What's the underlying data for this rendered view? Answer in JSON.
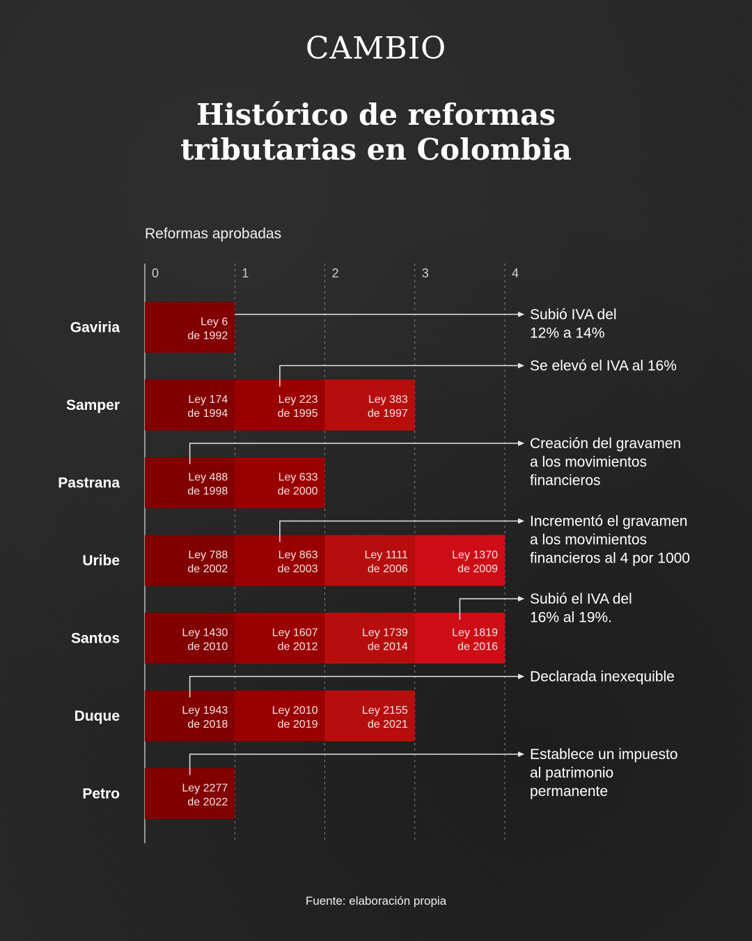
{
  "brand": "CAMBIO",
  "title_lines": [
    "Histórico de reformas",
    "tributarias en Colombia"
  ],
  "footer": "Fuente: elaboración propia",
  "colors": {
    "background": "#262626",
    "bar_shades": [
      "#8e0f10",
      "#a81010",
      "#c81214",
      "#e0191a"
    ],
    "connector": "#e6e6e6",
    "gridline": "#8a8a8a"
  },
  "chart_data": {
    "type": "bar",
    "orientation": "horizontal",
    "stacked": true,
    "xlabel": "Reformas aprobadas",
    "x_ticks": [
      0,
      1,
      2,
      3,
      4
    ],
    "xlim": [
      0,
      4
    ],
    "grid": "vertical-dashed",
    "categories": [
      "Gaviria",
      "Samper",
      "Pastrana",
      "Uribe",
      "Santos",
      "Duque",
      "Petro"
    ],
    "values": [
      1,
      3,
      2,
      4,
      4,
      3,
      1
    ],
    "segments": [
      [
        {
          "line1": "Ley 6",
          "line2": "de 1992"
        }
      ],
      [
        {
          "line1": "Ley 174",
          "line2": "de 1994"
        },
        {
          "line1": "Ley 223",
          "line2": "de 1995"
        },
        {
          "line1": "Ley 383",
          "line2": "de 1997"
        }
      ],
      [
        {
          "line1": "Ley 488",
          "line2": "de 1998"
        },
        {
          "line1": "Ley 633",
          "line2": "de 2000"
        }
      ],
      [
        {
          "line1": "Ley 788",
          "line2": "de 2002"
        },
        {
          "line1": "Ley 863",
          "line2": "de 2003"
        },
        {
          "line1": "Ley 1111",
          "line2": "de 2006"
        },
        {
          "line1": "Ley 1370",
          "line2": "de 2009"
        }
      ],
      [
        {
          "line1": "Ley 1430",
          "line2": "de 2010"
        },
        {
          "line1": "Ley 1607",
          "line2": "de 2012"
        },
        {
          "line1": "Ley 1739",
          "line2": "de 2014"
        },
        {
          "line1": "Ley 1819",
          "line2": "de 2016"
        }
      ],
      [
        {
          "line1": "Ley 1943",
          "line2": "de 2018"
        },
        {
          "line1": "Ley 2010",
          "line2": "de 2019"
        },
        {
          "line1": "Ley 2155",
          "line2": "de 2021"
        }
      ],
      [
        {
          "line1": "Ley 2277",
          "line2": "de 2022"
        }
      ]
    ],
    "annotations": [
      {
        "category_index": 0,
        "segment_index": 0,
        "lines": [
          "Subió IVA del",
          "12% a 14%"
        ]
      },
      {
        "category_index": 1,
        "segment_index": 1,
        "lines": [
          "Se elevó el IVA al 16%"
        ]
      },
      {
        "category_index": 2,
        "segment_index": 0,
        "lines": [
          "Creación del gravamen",
          "a los movimientos",
          "financieros"
        ]
      },
      {
        "category_index": 3,
        "segment_index": 1,
        "lines": [
          "Incrementó el gravamen",
          "a los movimientos",
          "financieros al 4 por 1000"
        ]
      },
      {
        "category_index": 4,
        "segment_index": 3,
        "lines": [
          "Subió el IVA del",
          "16% al 19%."
        ]
      },
      {
        "category_index": 5,
        "segment_index": 0,
        "lines": [
          "Declarada inexequible"
        ]
      },
      {
        "category_index": 6,
        "segment_index": 0,
        "lines": [
          "Establece un impuesto",
          "al patrimonio",
          "permanente"
        ]
      }
    ]
  }
}
